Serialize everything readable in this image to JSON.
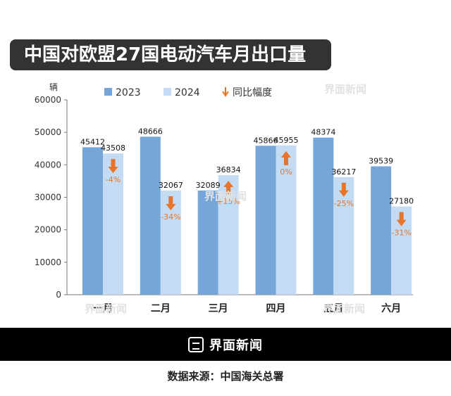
{
  "title": "中国对欧盟27国电动汽车月出口量",
  "brand": "界面新闻",
  "source": "数据来源：中国海关总署",
  "chart_data": {
    "type": "bar",
    "ylabel": "辆",
    "ylim": [
      0,
      60000
    ],
    "yticks": [
      0,
      10000,
      20000,
      30000,
      40000,
      50000,
      60000
    ],
    "categories": [
      "一月",
      "二月",
      "三月",
      "四月",
      "五月",
      "六月"
    ],
    "series": [
      {
        "name": "2023",
        "color": "#74a6da",
        "values": [
          45412,
          48666,
          32089,
          45866,
          48374,
          39539
        ]
      },
      {
        "name": "2024",
        "color": "#c3dcf3",
        "values": [
          43508,
          32067,
          36834,
          45955,
          36217,
          27180
        ]
      }
    ],
    "yoy": {
      "name": "同比幅度",
      "color": "#e8742a",
      "values": [
        "-4%",
        "-34%",
        "+15%",
        "0%",
        "-25%",
        "-31%"
      ],
      "directions": [
        "down",
        "down",
        "up",
        "up",
        "down",
        "down"
      ]
    },
    "grid": false,
    "legend": "top"
  }
}
